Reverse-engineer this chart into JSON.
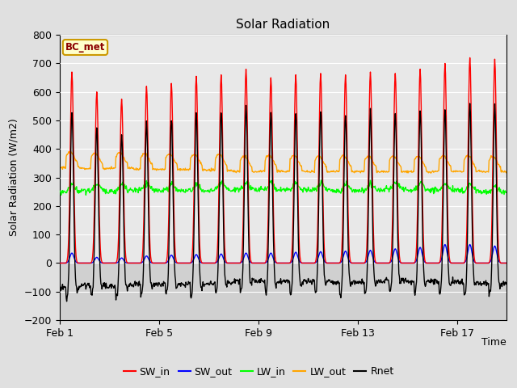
{
  "title": "Solar Radiation",
  "xlabel": "Time",
  "ylabel": "Solar Radiation (W/m2)",
  "ylim": [
    -200,
    800
  ],
  "yticks": [
    -200,
    -100,
    0,
    100,
    200,
    300,
    400,
    500,
    600,
    700,
    800
  ],
  "bg_color": "#e0e0e0",
  "plot_bg_above0": "#e8e8e8",
  "plot_bg_below0": "#d0d0d0",
  "label_tag": "BC_met",
  "label_tag_bg": "#ffffcc",
  "label_tag_border": "#cc9900",
  "label_tag_text": "#8b0000",
  "legend_entries": [
    "SW_in",
    "SW_out",
    "LW_in",
    "LW_out",
    "Rnet"
  ],
  "legend_colors": [
    "red",
    "blue",
    "lime",
    "orange",
    "black"
  ],
  "xtick_labels": [
    "Feb 1",
    "Feb 5",
    "Feb 9",
    "Feb 13",
    "Feb 17"
  ],
  "xtick_positions": [
    0,
    4,
    8,
    12,
    16
  ],
  "xlim": [
    0,
    18
  ],
  "n_days": 18,
  "pts_per_day": 48
}
